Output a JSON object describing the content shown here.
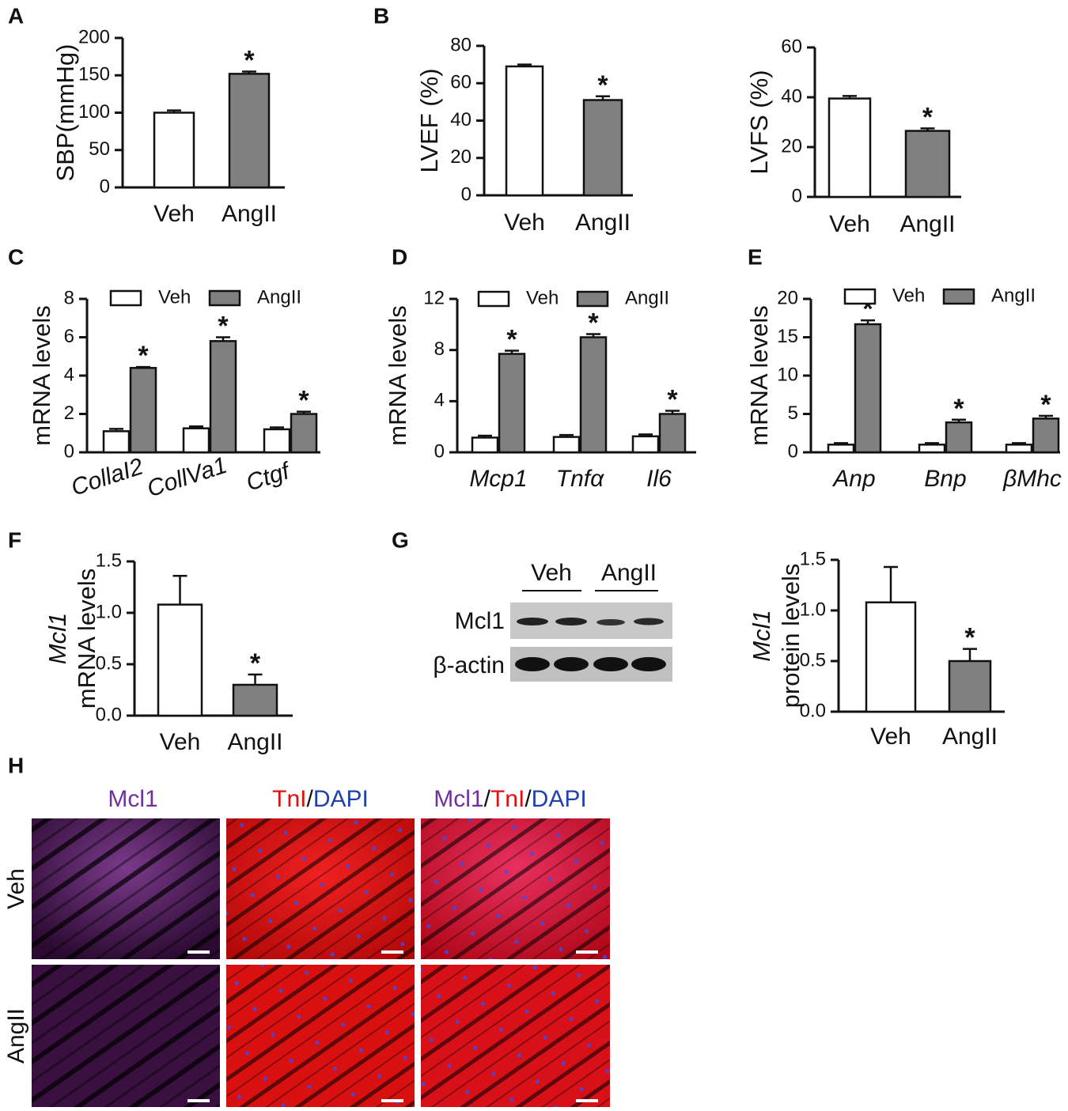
{
  "chart_data": [
    {
      "type": "bar",
      "label": "A",
      "ylabel": [
        "SBP(mmHg)"
      ],
      "categories": [
        "Veh",
        "AngII"
      ],
      "values": [
        100,
        152
      ],
      "errors": [
        3,
        3
      ],
      "colors": [
        "#ffffff",
        "#808080"
      ],
      "annotations": [
        {
          "index": 1,
          "text": "*"
        }
      ],
      "ylim": [
        0,
        200
      ],
      "yticks": [
        0,
        50,
        100,
        150,
        200
      ]
    },
    {
      "type": "bar",
      "label": "B",
      "ylabel": [
        "LVEF (%)"
      ],
      "categories": [
        "Veh",
        "AngII"
      ],
      "values": [
        69,
        51
      ],
      "errors": [
        1,
        2
      ],
      "colors": [
        "#ffffff",
        "#808080"
      ],
      "annotations": [
        {
          "index": 1,
          "text": "*"
        }
      ],
      "ylim": [
        0,
        80
      ],
      "yticks": [
        0,
        20,
        40,
        60,
        80
      ]
    },
    {
      "type": "bar",
      "ylabel": [
        "LVFS (%)"
      ],
      "categories": [
        "Veh",
        "AngII"
      ],
      "values": [
        39.5,
        26.5
      ],
      "errors": [
        1,
        1
      ],
      "colors": [
        "#ffffff",
        "#808080"
      ],
      "annotations": [
        {
          "index": 1,
          "text": "*"
        }
      ],
      "ylim": [
        0,
        60
      ],
      "yticks": [
        0,
        20,
        40,
        60
      ]
    },
    {
      "type": "grouped_bar",
      "label": "C",
      "ylabel": [
        "mRNA levels"
      ],
      "categories": [
        "CollaI2",
        "CollVa1",
        "Ctgf"
      ],
      "series": [
        {
          "name": "Veh",
          "color": "#ffffff",
          "values": [
            1.1,
            1.25,
            1.2
          ],
          "errors": [
            0.12,
            0.1,
            0.1
          ]
        },
        {
          "name": "AngII",
          "color": "#808080",
          "values": [
            4.4,
            5.8,
            2.0
          ],
          "errors": [
            0.05,
            0.2,
            0.12
          ],
          "annotation": "*"
        }
      ],
      "ylim": [
        0,
        8
      ],
      "yticks": [
        0,
        2,
        4,
        6,
        8
      ]
    },
    {
      "type": "grouped_bar",
      "label": "D",
      "ylabel": [
        "mRNA levels"
      ],
      "categories": [
        "Mcp1",
        "Tnfα",
        "Il6"
      ],
      "series": [
        {
          "name": "Veh",
          "color": "#ffffff",
          "values": [
            1.15,
            1.2,
            1.25
          ],
          "errors": [
            0.15,
            0.15,
            0.15
          ]
        },
        {
          "name": "AngII",
          "color": "#808080",
          "values": [
            7.7,
            9.0,
            3.0
          ],
          "errors": [
            0.25,
            0.25,
            0.25
          ],
          "annotation": "*"
        }
      ],
      "ylim": [
        0,
        12
      ],
      "yticks": [
        0,
        4,
        8,
        12
      ]
    },
    {
      "type": "grouped_bar",
      "label": "E",
      "ylabel": [
        "mRNA levels"
      ],
      "categories": [
        "Anp",
        "Bnp",
        "βMhc"
      ],
      "series": [
        {
          "name": "Veh",
          "color": "#ffffff",
          "values": [
            1.0,
            1.0,
            1.0
          ],
          "errors": [
            0.2,
            0.2,
            0.2
          ]
        },
        {
          "name": "AngII",
          "color": "#808080",
          "values": [
            16.7,
            3.9,
            4.4
          ],
          "errors": [
            0.5,
            0.35,
            0.35
          ],
          "annotation": "*"
        }
      ],
      "ylim": [
        0,
        20
      ],
      "yticks": [
        0,
        5,
        10,
        15,
        20
      ]
    },
    {
      "type": "bar",
      "label": "F",
      "ylabel": [
        "Mcl1",
        "mRNA levels"
      ],
      "categories": [
        "Veh",
        "AngII"
      ],
      "values": [
        1.08,
        0.3
      ],
      "errors": [
        0.28,
        0.1
      ],
      "colors": [
        "#ffffff",
        "#808080"
      ],
      "annotations": [
        {
          "index": 1,
          "text": "*"
        }
      ],
      "ylim": [
        0,
        1.5
      ],
      "yticks": [
        {
          "value": 0,
          "label": "0.0"
        },
        0.5,
        {
          "value": 1,
          "label": "1.0"
        },
        1.5
      ]
    },
    {
      "type": "bar",
      "label": "G",
      "ylabel": [
        "Mcl1",
        "protein levels"
      ],
      "categories": [
        "Veh",
        "AngII"
      ],
      "values": [
        1.08,
        0.5
      ],
      "errors": [
        0.35,
        0.12
      ],
      "colors": [
        "#ffffff",
        "#808080"
      ],
      "annotations": [
        {
          "index": 1,
          "text": "*"
        }
      ],
      "ylim": [
        0,
        1.5
      ],
      "yticks": [
        {
          "value": 0,
          "label": "0.0"
        },
        0.5,
        {
          "value": 1,
          "label": "1.0"
        },
        1.5
      ]
    }
  ],
  "blot": {
    "groups": [
      "Veh",
      "AngII"
    ],
    "rows": [
      "Mcl1",
      "β-actin"
    ]
  },
  "micrographs": {
    "label": "H",
    "columns": [
      [
        {
          "text": "Mcl1",
          "color": "#7030a0"
        }
      ],
      [
        {
          "text": "TnI",
          "color": "#e01010"
        },
        {
          "text": "/",
          "color": "#111111"
        },
        {
          "text": "DAPI",
          "color": "#2040b0"
        }
      ],
      [
        {
          "text": "Mcl1",
          "color": "#7030a0"
        },
        {
          "text": "/",
          "color": "#111111"
        },
        {
          "text": "TnI",
          "color": "#e01010"
        },
        {
          "text": "/",
          "color": "#111111"
        },
        {
          "text": "DAPI",
          "color": "#2040b0"
        }
      ]
    ],
    "rows": [
      "Veh",
      "AngII"
    ]
  }
}
